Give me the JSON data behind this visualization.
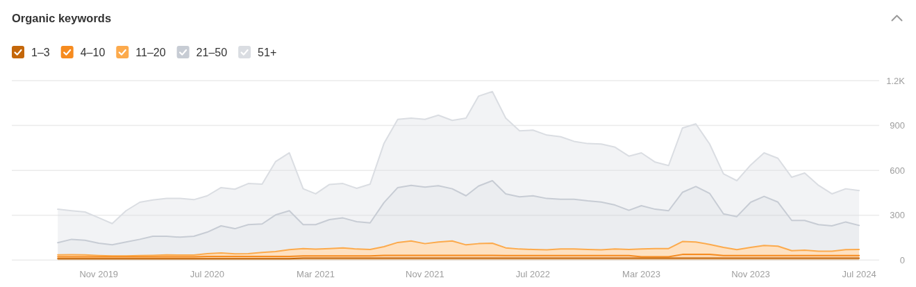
{
  "chart_data": {
    "type": "area",
    "stacked": true,
    "title": "Organic keywords",
    "x": [
      "2019-08",
      "2019-09",
      "2019-10",
      "2019-11",
      "2019-12",
      "2020-01",
      "2020-02",
      "2020-03",
      "2020-04",
      "2020-05",
      "2020-06",
      "2020-07",
      "2020-08",
      "2020-09",
      "2020-10",
      "2020-11",
      "2020-12",
      "2021-01",
      "2021-02",
      "2021-03",
      "2021-04",
      "2021-05",
      "2021-06",
      "2021-07",
      "2021-08",
      "2021-09",
      "2021-10",
      "2021-11",
      "2021-12",
      "2022-01",
      "2022-02",
      "2022-03",
      "2022-04",
      "2022-05",
      "2022-06",
      "2022-07",
      "2022-08",
      "2022-09",
      "2022-10",
      "2022-11",
      "2022-12",
      "2023-01",
      "2023-02",
      "2023-03",
      "2023-04",
      "2023-05",
      "2023-06",
      "2023-07",
      "2023-08",
      "2023-09",
      "2023-10",
      "2023-11",
      "2023-12",
      "2024-01",
      "2024-02",
      "2024-03",
      "2024-04",
      "2024-05",
      "2024-06",
      "2024-07"
    ],
    "series": [
      {
        "name": "1–3",
        "color": "#c4670a",
        "values": [
          10,
          10,
          10,
          10,
          10,
          10,
          10,
          10,
          10,
          10,
          10,
          10,
          10,
          10,
          10,
          10,
          10,
          10,
          13,
          13,
          13,
          13,
          13,
          13,
          13,
          13,
          13,
          13,
          13,
          13,
          13,
          13,
          13,
          13,
          13,
          13,
          13,
          13,
          13,
          13,
          13,
          13,
          13,
          13,
          13,
          13,
          13,
          13,
          13,
          13,
          13,
          13,
          13,
          13,
          13,
          13,
          13,
          13,
          13,
          13
        ]
      },
      {
        "name": "4–10",
        "color": "#f68b1f",
        "values": [
          12,
          12,
          12,
          12,
          12,
          12,
          12,
          12,
          12,
          12,
          12,
          15,
          15,
          15,
          15,
          15,
          15,
          15,
          15,
          15,
          15,
          15,
          15,
          15,
          19,
          19,
          19,
          19,
          19,
          19,
          19,
          19,
          19,
          17,
          17,
          17,
          17,
          17,
          17,
          17,
          17,
          17,
          17,
          9,
          9,
          9,
          25,
          25,
          25,
          17,
          17,
          17,
          17,
          17,
          17,
          17,
          17,
          17,
          17,
          17
        ]
      },
      {
        "name": "11–20",
        "color": "#fcaa4c",
        "values": [
          13,
          14,
          13,
          9,
          6,
          6,
          9,
          10,
          13,
          12,
          12,
          18,
          23,
          17,
          18,
          26,
          32,
          45,
          49,
          45,
          49,
          54,
          46,
          43,
          58,
          86,
          96,
          78,
          89,
          96,
          70,
          78,
          81,
          52,
          44,
          41,
          39,
          44,
          44,
          41,
          39,
          44,
          41,
          52,
          55,
          55,
          86,
          83,
          67,
          55,
          40,
          55,
          68,
          63,
          33,
          36,
          29,
          29,
          40,
          41
        ]
      },
      {
        "name": "21–50",
        "color": "#c7ccd4",
        "values": [
          81,
          103,
          98,
          82,
          74,
          93,
          108,
          127,
          124,
          119,
          125,
          144,
          181,
          168,
          194,
          191,
          245,
          260,
          160,
          164,
          194,
          200,
          183,
          178,
          294,
          367,
          372,
          378,
          376,
          349,
          328,
          385,
          418,
          361,
          349,
          359,
          343,
          333,
          333,
          325,
          319,
          294,
          262,
          290,
          263,
          253,
          329,
          371,
          341,
          224,
          221,
          302,
          328,
          295,
          202,
          199,
          178,
          170,
          185,
          161
        ]
      },
      {
        "name": "51+",
        "color": "#dadde2",
        "values": [
          224,
          191,
          189,
          170,
          142,
          209,
          248,
          243,
          253,
          259,
          245,
          243,
          256,
          264,
          275,
          266,
          356,
          387,
          240,
          206,
          235,
          230,
          223,
          259,
          395,
          456,
          449,
          453,
          472,
          457,
          519,
          601,
          596,
          506,
          441,
          439,
          424,
          418,
          387,
          383,
          388,
          387,
          362,
          353,
          315,
          302,
          430,
          419,
          330,
          268,
          240,
          249,
          291,
          293,
          289,
          317,
          263,
          214,
          222,
          233
        ]
      }
    ],
    "xlim": [
      "2019-04-20",
      "2024-08-15"
    ],
    "xticks": [
      {
        "value": "2019-11",
        "label": "Nov 2019"
      },
      {
        "value": "2020-07",
        "label": "Jul 2020"
      },
      {
        "value": "2021-03",
        "label": "Mar 2021"
      },
      {
        "value": "2021-11",
        "label": "Nov 2021"
      },
      {
        "value": "2022-07",
        "label": "Jul 2022"
      },
      {
        "value": "2023-03",
        "label": "Mar 2023"
      },
      {
        "value": "2023-11",
        "label": "Nov 2023"
      },
      {
        "value": "2024-07",
        "label": "Jul 2024"
      }
    ],
    "ylim": [
      0,
      1200
    ],
    "yticks": [
      0,
      300,
      600,
      900,
      {
        "value": 1200,
        "label": "1.2K"
      }
    ],
    "grid": "y",
    "legend": "top left"
  }
}
